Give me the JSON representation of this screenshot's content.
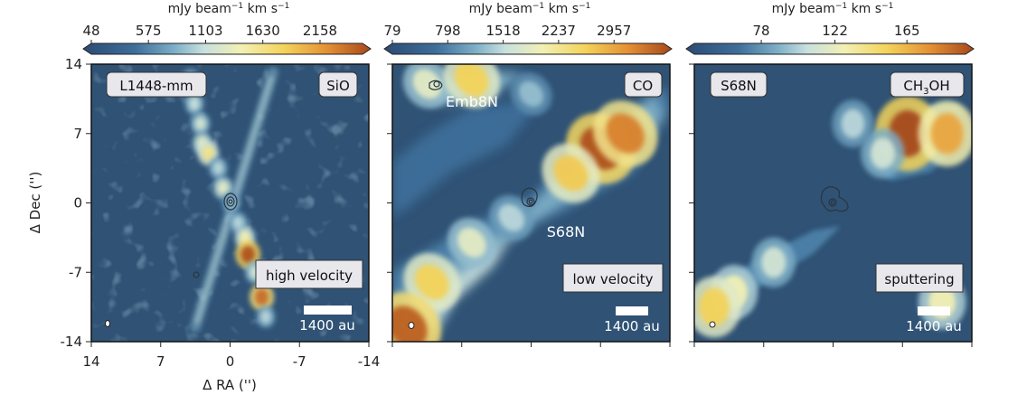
{
  "figure": {
    "colorbar_unit_prefix": "mJy beam",
    "colorbar_unit_exp1": "−1",
    "colorbar_unit_mid": " km s",
    "colorbar_unit_exp2": "−1",
    "xlabel": "Δ RA ('')",
    "ylabel": "Δ Dec ('')"
  },
  "chart_data": [
    {
      "type": "heatmap",
      "title": "L1448-mm SiO",
      "source_label": "L1448-mm",
      "molecule_label": "SiO",
      "regime_label": "high velocity",
      "scalebar_label": "1400 au",
      "colorbar_ticks": [
        "48",
        "575",
        "1103",
        "1630",
        "2158"
      ],
      "colorbar_range": [
        48,
        2550
      ],
      "x_ticks": [
        "14",
        "7",
        "0",
        "-7",
        "-14"
      ],
      "y_ticks": [
        "14",
        "7",
        "0",
        "-7",
        "-14"
      ],
      "xlim": [
        14,
        -14
      ],
      "ylim": [
        -14,
        14
      ],
      "emission_features": [
        {
          "x": 4.0,
          "y": 12.5,
          "level": 0.35
        },
        {
          "x": 3.6,
          "y": 10.0,
          "level": 0.42
        },
        {
          "x": 3.0,
          "y": 8.0,
          "level": 0.45
        },
        {
          "x": 2.8,
          "y": 6.0,
          "level": 0.5
        },
        {
          "x": 2.2,
          "y": 5.0,
          "level": 0.62
        },
        {
          "x": 1.2,
          "y": 3.5,
          "level": 0.4
        },
        {
          "x": 0.7,
          "y": 1.5,
          "level": 0.5
        },
        {
          "x": -0.1,
          "y": 0.0,
          "level": 0.35
        },
        {
          "x": -0.8,
          "y": -2.0,
          "level": 0.4
        },
        {
          "x": -1.5,
          "y": -3.5,
          "level": 0.55
        },
        {
          "x": -1.8,
          "y": -5.2,
          "level": 0.98
        },
        {
          "x": -2.5,
          "y": -7.0,
          "level": 0.45
        },
        {
          "x": -3.2,
          "y": -9.5,
          "level": 0.92
        },
        {
          "x": -3.6,
          "y": -11.5,
          "level": 0.4
        }
      ]
    },
    {
      "type": "heatmap",
      "title": "S68N CO",
      "source_label": "S68N",
      "secondary_source_label": "Emb8N",
      "molecule_label": "CO",
      "regime_label": "low velocity",
      "scalebar_label": "1400 au",
      "colorbar_ticks": [
        "79",
        "798",
        "1518",
        "2237",
        "2957"
      ],
      "colorbar_range": [
        79,
        3600
      ],
      "emission_features": [
        {
          "x": 10.5,
          "y": 12.0,
          "level": 0.5
        },
        {
          "x": 6.0,
          "y": 12.5,
          "level": 0.7
        },
        {
          "x": 0.0,
          "y": 11.0,
          "level": 0.35
        },
        {
          "x": -7.0,
          "y": 5.5,
          "level": 0.98
        },
        {
          "x": -9.5,
          "y": 7.0,
          "level": 0.88
        },
        {
          "x": -4.0,
          "y": 3.0,
          "level": 0.72
        },
        {
          "x": 2.0,
          "y": -1.5,
          "level": 0.4
        },
        {
          "x": 6.0,
          "y": -4.0,
          "level": 0.5
        },
        {
          "x": 10.0,
          "y": -8.0,
          "level": 0.7
        },
        {
          "x": 12.5,
          "y": -12.5,
          "level": 0.95
        }
      ]
    },
    {
      "type": "heatmap",
      "title": "S68N CH3OH",
      "source_label": "S68N",
      "molecule_label": "CH3OH",
      "regime_label": "sputtering",
      "scalebar_label": "1400 au",
      "colorbar_ticks": [
        "78",
        "122",
        "165"
      ],
      "colorbar_range": [
        38,
        200
      ],
      "emission_features": [
        {
          "x": -7.5,
          "y": 7.0,
          "level": 1.0
        },
        {
          "x": -11.5,
          "y": 7.0,
          "level": 0.8
        },
        {
          "x": -5.0,
          "y": 5.0,
          "level": 0.45
        },
        {
          "x": -2.0,
          "y": 8.0,
          "level": 0.4
        },
        {
          "x": 6.0,
          "y": -6.0,
          "level": 0.45
        },
        {
          "x": 10.0,
          "y": -9.0,
          "level": 0.55
        },
        {
          "x": 12.0,
          "y": -10.5,
          "level": 0.7
        },
        {
          "x": -11.0,
          "y": -10.0,
          "level": 0.55
        }
      ]
    }
  ]
}
